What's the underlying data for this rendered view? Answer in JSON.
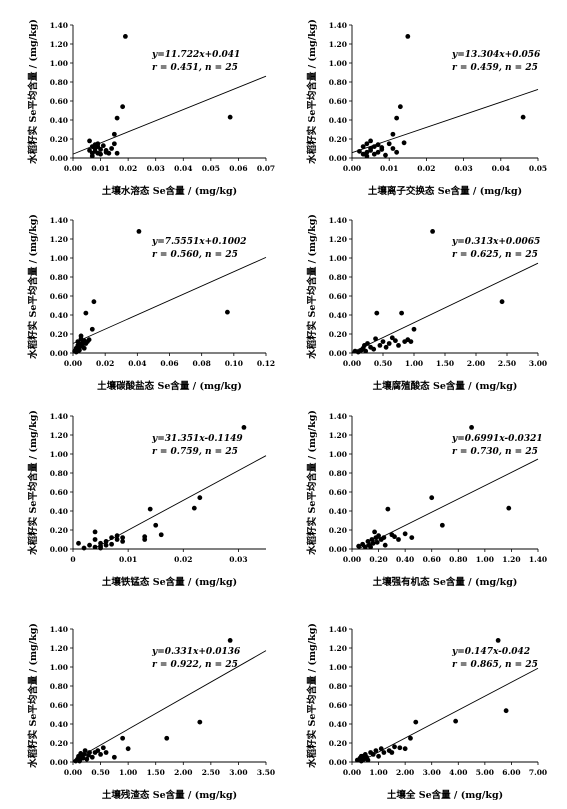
{
  "chart_data": [
    {
      "type": "scatter",
      "equation": "y=11.722x+0.041",
      "stats": "r = 0.451, n = 25",
      "slope": 11.722,
      "intercept": 0.041,
      "xlabel": "土壤水溶态 Se含量 / (mg/kg)",
      "ylabel": "水稻籽实 Se平均含量 / (mg/kg)",
      "xlim": [
        0,
        0.07
      ],
      "ylim": [
        0,
        1.4
      ],
      "xticks": [
        "0.00",
        "0.01",
        "0.02",
        "0.03",
        "0.04",
        "0.05",
        "0.06",
        "0.07"
      ],
      "yticks": [
        "0.00",
        "0.20",
        "0.40",
        "0.60",
        "0.80",
        "1.00",
        "1.20",
        "1.40"
      ],
      "points": [
        [
          0.006,
          0.18
        ],
        [
          0.006,
          0.08
        ],
        [
          0.007,
          0.12
        ],
        [
          0.007,
          0.05
        ],
        [
          0.007,
          0.02
        ],
        [
          0.008,
          0.14
        ],
        [
          0.008,
          0.1
        ],
        [
          0.008,
          0.07
        ],
        [
          0.009,
          0.05
        ],
        [
          0.009,
          0.12
        ],
        [
          0.009,
          0.15
        ],
        [
          0.01,
          0.09
        ],
        [
          0.01,
          0.04
        ],
        [
          0.011,
          0.13
        ],
        [
          0.012,
          0.06
        ],
        [
          0.012,
          0.08
        ],
        [
          0.013,
          0.05
        ],
        [
          0.014,
          0.1
        ],
        [
          0.015,
          0.25
        ],
        [
          0.015,
          0.15
        ],
        [
          0.016,
          0.42
        ],
        [
          0.016,
          0.05
        ],
        [
          0.018,
          0.54
        ],
        [
          0.019,
          1.28
        ],
        [
          0.057,
          0.43
        ]
      ]
    },
    {
      "type": "scatter",
      "equation": "y=13.304x+0.056",
      "stats": "r = 0.459, n = 25",
      "slope": 13.304,
      "intercept": 0.056,
      "xlabel": "土壤离子交换态 Se含量 / (mg/kg)",
      "ylabel": "水稻籽实 Se平均含量 / (mg/kg)",
      "xlim": [
        0,
        0.05
      ],
      "ylim": [
        0,
        1.4
      ],
      "xticks": [
        "0.00",
        "0.01",
        "0.02",
        "0.03",
        "0.04",
        "0.05"
      ],
      "yticks": [
        "0.00",
        "0.20",
        "0.40",
        "0.60",
        "0.80",
        "1.00",
        "1.20",
        "1.40"
      ],
      "points": [
        [
          0.002,
          0.07
        ],
        [
          0.003,
          0.04
        ],
        [
          0.003,
          0.12
        ],
        [
          0.004,
          0.06
        ],
        [
          0.004,
          0.02
        ],
        [
          0.004,
          0.15
        ],
        [
          0.005,
          0.1
        ],
        [
          0.005,
          0.18
        ],
        [
          0.005,
          0.08
        ],
        [
          0.006,
          0.04
        ],
        [
          0.006,
          0.12
        ],
        [
          0.007,
          0.14
        ],
        [
          0.007,
          0.06
        ],
        [
          0.008,
          0.11
        ],
        [
          0.008,
          0.09
        ],
        [
          0.009,
          0.03
        ],
        [
          0.01,
          0.15
        ],
        [
          0.011,
          0.1
        ],
        [
          0.011,
          0.25
        ],
        [
          0.012,
          0.06
        ],
        [
          0.012,
          0.42
        ],
        [
          0.013,
          0.54
        ],
        [
          0.014,
          0.16
        ],
        [
          0.015,
          1.28
        ],
        [
          0.046,
          0.43
        ]
      ]
    },
    {
      "type": "scatter",
      "equation": "y=7.5551x+0.1002",
      "stats": "r = 0.560, n = 25",
      "slope": 7.5551,
      "intercept": 0.1002,
      "xlabel": "土壤碳酸盐态 Se含量 / (mg/kg)",
      "ylabel": "水稻籽实 Se平均含量 / (mg/kg)",
      "xlim": [
        0,
        0.12
      ],
      "ylim": [
        0,
        1.4
      ],
      "xticks": [
        "0.00",
        "0.02",
        "0.04",
        "0.06",
        "0.08",
        "0.10",
        "0.12"
      ],
      "yticks": [
        "0.00",
        "0.20",
        "0.40",
        "0.60",
        "0.80",
        "1.00",
        "1.20",
        "1.40"
      ],
      "points": [
        [
          0.001,
          0.02
        ],
        [
          0.002,
          0.05
        ],
        [
          0.002,
          0.01
        ],
        [
          0.003,
          0.08
        ],
        [
          0.003,
          0.04
        ],
        [
          0.003,
          0.12
        ],
        [
          0.004,
          0.06
        ],
        [
          0.004,
          0.03
        ],
        [
          0.004,
          0.1
        ],
        [
          0.005,
          0.07
        ],
        [
          0.005,
          0.15
        ],
        [
          0.005,
          0.18
        ],
        [
          0.006,
          0.09
        ],
        [
          0.006,
          0.11
        ],
        [
          0.007,
          0.05
        ],
        [
          0.007,
          0.13
        ],
        [
          0.008,
          0.1
        ],
        [
          0.008,
          0.42
        ],
        [
          0.009,
          0.12
        ],
        [
          0.01,
          0.14
        ],
        [
          0.012,
          0.25
        ],
        [
          0.013,
          0.54
        ],
        [
          0.041,
          1.28
        ],
        [
          0.096,
          0.43
        ],
        [
          0.003,
          0.02
        ]
      ]
    },
    {
      "type": "scatter",
      "equation": "y=0.313x+0.0065",
      "stats": "r = 0.625, n = 25",
      "slope": 0.313,
      "intercept": 0.0065,
      "xlabel": "土壤腐殖酸态 Se含量 / (mg/kg)",
      "ylabel": "水稻籽实 Se平均含量 / (mg/kg)",
      "xlim": [
        0,
        3.0
      ],
      "ylim": [
        0,
        1.4
      ],
      "xticks": [
        "0.00",
        "0.50",
        "1.00",
        "1.50",
        "2.00",
        "2.50",
        "3.00"
      ],
      "yticks": [
        "0.00",
        "0.20",
        "0.40",
        "0.60",
        "0.80",
        "1.00",
        "1.20",
        "1.40"
      ],
      "points": [
        [
          0.05,
          0.02
        ],
        [
          0.1,
          0.01
        ],
        [
          0.15,
          0.03
        ],
        [
          0.18,
          0.05
        ],
        [
          0.2,
          0.08
        ],
        [
          0.22,
          0.02
        ],
        [
          0.25,
          0.1
        ],
        [
          0.3,
          0.06
        ],
        [
          0.35,
          0.04
        ],
        [
          0.38,
          0.15
        ],
        [
          0.4,
          0.42
        ],
        [
          0.45,
          0.08
        ],
        [
          0.5,
          0.12
        ],
        [
          0.55,
          0.06
        ],
        [
          0.6,
          0.1
        ],
        [
          0.65,
          0.16
        ],
        [
          0.7,
          0.13
        ],
        [
          0.75,
          0.08
        ],
        [
          0.8,
          0.42
        ],
        [
          0.85,
          0.12
        ],
        [
          0.9,
          0.14
        ],
        [
          0.95,
          0.12
        ],
        [
          1.0,
          0.25
        ],
        [
          1.3,
          1.28
        ],
        [
          2.42,
          0.54
        ]
      ]
    },
    {
      "type": "scatter",
      "equation": "y=31.351x-0.1149",
      "stats": "r = 0.759, n = 25",
      "slope": 31.351,
      "intercept": -0.1149,
      "xlabel": "土壤铁锰态 Se含量 / (mg/kg)",
      "ylabel": "水稻籽实 Se平均含量 / (mg/kg)",
      "xlim": [
        0,
        0.035
      ],
      "ylim": [
        0,
        1.4
      ],
      "xticks": [
        "0",
        "0.01",
        "0.02",
        "0.03"
      ],
      "xtickvals": [
        0,
        0.01,
        0.02,
        0.03
      ],
      "yticks": [
        "0.00",
        "0.20",
        "0.40",
        "0.60",
        "0.80",
        "1.00",
        "1.20",
        "1.40"
      ],
      "points": [
        [
          0.001,
          0.06
        ],
        [
          0.003,
          0.04
        ],
        [
          0.004,
          0.02
        ],
        [
          0.004,
          0.1
        ],
        [
          0.004,
          0.18
        ],
        [
          0.005,
          0.06
        ],
        [
          0.005,
          0.01
        ],
        [
          0.005,
          0.03
        ],
        [
          0.006,
          0.04
        ],
        [
          0.006,
          0.08
        ],
        [
          0.007,
          0.12
        ],
        [
          0.007,
          0.05
        ],
        [
          0.008,
          0.1
        ],
        [
          0.008,
          0.14
        ],
        [
          0.009,
          0.08
        ],
        [
          0.009,
          0.12
        ],
        [
          0.013,
          0.1
        ],
        [
          0.013,
          0.13
        ],
        [
          0.014,
          0.42
        ],
        [
          0.015,
          0.25
        ],
        [
          0.016,
          0.15
        ],
        [
          0.022,
          0.43
        ],
        [
          0.023,
          0.54
        ],
        [
          0.031,
          1.28
        ],
        [
          0.002,
          0.01
        ]
      ]
    },
    {
      "type": "scatter",
      "equation": "y=0.6991x-0.0321",
      "stats": "r = 0.730, n = 25",
      "slope": 0.6991,
      "intercept": -0.0321,
      "xlabel": "土壤强有机态 Se含量 / (mg/kg)",
      "ylabel": "水稻籽实 Se平均含量 / (mg/kg)",
      "xlim": [
        0,
        1.4
      ],
      "ylim": [
        0,
        1.4
      ],
      "xticks": [
        "0.00",
        "0.20",
        "0.40",
        "0.60",
        "0.80",
        "1.00",
        "1.20",
        "1.40"
      ],
      "yticks": [
        "0.00",
        "0.20",
        "0.40",
        "0.60",
        "0.80",
        "1.00",
        "1.20",
        "1.40"
      ],
      "points": [
        [
          0.05,
          0.03
        ],
        [
          0.08,
          0.05
        ],
        [
          0.1,
          0.02
        ],
        [
          0.12,
          0.08
        ],
        [
          0.13,
          0.04
        ],
        [
          0.15,
          0.1
        ],
        [
          0.16,
          0.06
        ],
        [
          0.17,
          0.18
        ],
        [
          0.18,
          0.12
        ],
        [
          0.19,
          0.07
        ],
        [
          0.2,
          0.14
        ],
        [
          0.22,
          0.1
        ],
        [
          0.24,
          0.12
        ],
        [
          0.25,
          0.04
        ],
        [
          0.27,
          0.42
        ],
        [
          0.3,
          0.15
        ],
        [
          0.32,
          0.13
        ],
        [
          0.35,
          0.1
        ],
        [
          0.4,
          0.16
        ],
        [
          0.45,
          0.12
        ],
        [
          0.6,
          0.54
        ],
        [
          0.68,
          0.25
        ],
        [
          0.9,
          1.28
        ],
        [
          1.18,
          0.43
        ],
        [
          0.14,
          0.02
        ]
      ]
    },
    {
      "type": "scatter",
      "equation": "y=0.331x+0.0136",
      "stats": "r = 0.922, n = 25",
      "slope": 0.331,
      "intercept": 0.0136,
      "xlabel": "土壤残渣态 Se含量 / (mg/kg)",
      "ylabel": "水稻籽实 Se平均含量 / (mg/kg)",
      "xlim": [
        0,
        3.5
      ],
      "ylim": [
        0,
        1.4
      ],
      "xticks": [
        "0.00",
        "0.50",
        "1.00",
        "1.50",
        "2.00",
        "2.50",
        "3.00",
        "3.50"
      ],
      "yticks": [
        "0.00",
        "0.20",
        "0.40",
        "0.60",
        "0.80",
        "1.00",
        "1.20",
        "1.40"
      ],
      "points": [
        [
          0.05,
          0.01
        ],
        [
          0.08,
          0.03
        ],
        [
          0.1,
          0.06
        ],
        [
          0.12,
          0.02
        ],
        [
          0.14,
          0.09
        ],
        [
          0.15,
          0.05
        ],
        [
          0.18,
          0.04
        ],
        [
          0.2,
          0.08
        ],
        [
          0.22,
          0.12
        ],
        [
          0.25,
          0.03
        ],
        [
          0.28,
          0.07
        ],
        [
          0.3,
          0.1
        ],
        [
          0.35,
          0.05
        ],
        [
          0.4,
          0.1
        ],
        [
          0.45,
          0.12
        ],
        [
          0.5,
          0.08
        ],
        [
          0.55,
          0.15
        ],
        [
          0.6,
          0.1
        ],
        [
          0.75,
          0.05
        ],
        [
          0.9,
          0.25
        ],
        [
          1.0,
          0.14
        ],
        [
          1.7,
          0.25
        ],
        [
          2.3,
          0.42
        ],
        [
          2.85,
          1.28
        ],
        [
          0.12,
          0.01
        ]
      ]
    },
    {
      "type": "scatter",
      "equation": "y=0.147x-0.042",
      "stats": "r = 0.865, n = 25",
      "slope": 0.147,
      "intercept": -0.042,
      "xlabel": "土壤全 Se含量 / (mg/kg)",
      "ylabel": "水稻籽实 Se平均含量 / (mg/kg)",
      "xlim": [
        0,
        7.0
      ],
      "ylim": [
        0,
        1.4
      ],
      "xticks": [
        "0.00",
        "1.00",
        "2.00",
        "3.00",
        "4.00",
        "5.00",
        "6.00",
        "7.00"
      ],
      "yticks": [
        "0.00",
        "0.20",
        "0.40",
        "0.60",
        "0.80",
        "1.00",
        "1.20",
        "1.40"
      ],
      "points": [
        [
          0.2,
          0.02
        ],
        [
          0.3,
          0.04
        ],
        [
          0.35,
          0.01
        ],
        [
          0.4,
          0.06
        ],
        [
          0.45,
          0.03
        ],
        [
          0.5,
          0.08
        ],
        [
          0.55,
          0.05
        ],
        [
          0.6,
          0.02
        ],
        [
          0.7,
          0.1
        ],
        [
          0.8,
          0.08
        ],
        [
          0.9,
          0.12
        ],
        [
          1.0,
          0.06
        ],
        [
          1.1,
          0.14
        ],
        [
          1.2,
          0.1
        ],
        [
          1.4,
          0.12
        ],
        [
          1.5,
          0.1
        ],
        [
          1.6,
          0.16
        ],
        [
          1.8,
          0.15
        ],
        [
          2.0,
          0.14
        ],
        [
          2.2,
          0.25
        ],
        [
          2.4,
          0.42
        ],
        [
          3.9,
          0.43
        ],
        [
          5.5,
          1.28
        ],
        [
          5.8,
          0.54
        ],
        [
          0.35,
          0.06
        ]
      ]
    }
  ]
}
